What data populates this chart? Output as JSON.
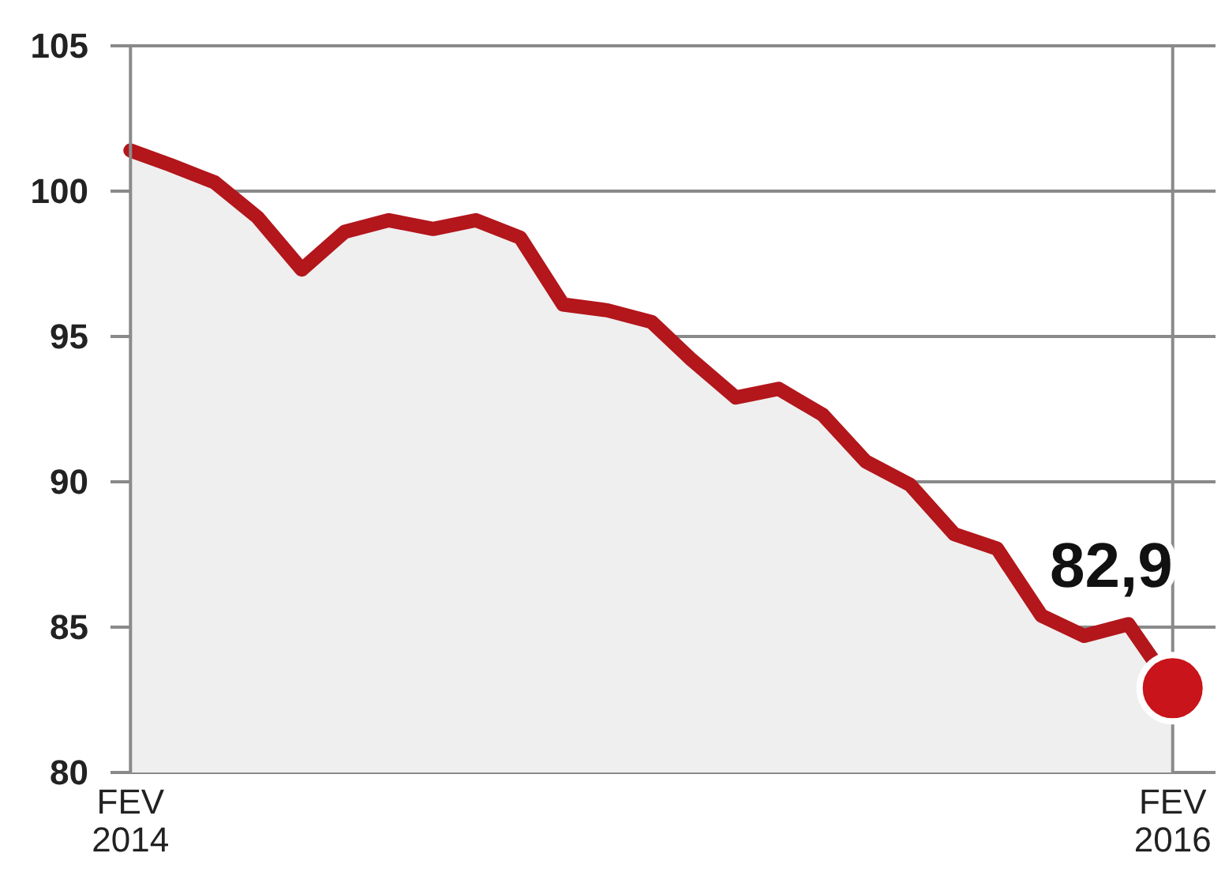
{
  "chart_data": {
    "type": "area",
    "x": [
      "2014-02",
      "2014-03",
      "2014-04",
      "2014-05",
      "2014-06",
      "2014-07",
      "2014-08",
      "2014-09",
      "2014-10",
      "2014-11",
      "2014-12",
      "2015-01",
      "2015-02",
      "2015-03",
      "2015-04",
      "2015-05",
      "2015-06",
      "2015-07",
      "2015-08",
      "2015-09",
      "2015-10",
      "2015-11",
      "2015-12",
      "2016-01",
      "2016-02"
    ],
    "series": [
      {
        "color": "#b3161b",
        "values": [
          101.4,
          100.9,
          100.3,
          99.1,
          97.3,
          98.6,
          99.0,
          98.7,
          99.0,
          98.4,
          96.1,
          95.9,
          95.5,
          94.2,
          92.9,
          93.2,
          92.3,
          90.7,
          89.9,
          88.2,
          87.7,
          85.4,
          84.7,
          85.1,
          82.9
        ]
      },
      {
        "type": "scatter",
        "color": "#c8141a",
        "x": [
          "2016-02"
        ],
        "values": [
          82.9
        ],
        "marker": "circle"
      }
    ],
    "annotations": [
      {
        "text": "82,9",
        "x": "2016-02",
        "y": 82.9
      }
    ],
    "xlim": [
      "2014-01-18",
      "2016-03-02"
    ],
    "xticks": [
      {
        "value": "2014-02",
        "label": "FEV\n2014"
      },
      {
        "value": "2016-02",
        "label": "FEV\n2016"
      }
    ],
    "ylim": [
      80,
      105
    ],
    "yticks": [
      80,
      85,
      90,
      95,
      100,
      105
    ],
    "grid": true,
    "line_style": "solid"
  }
}
